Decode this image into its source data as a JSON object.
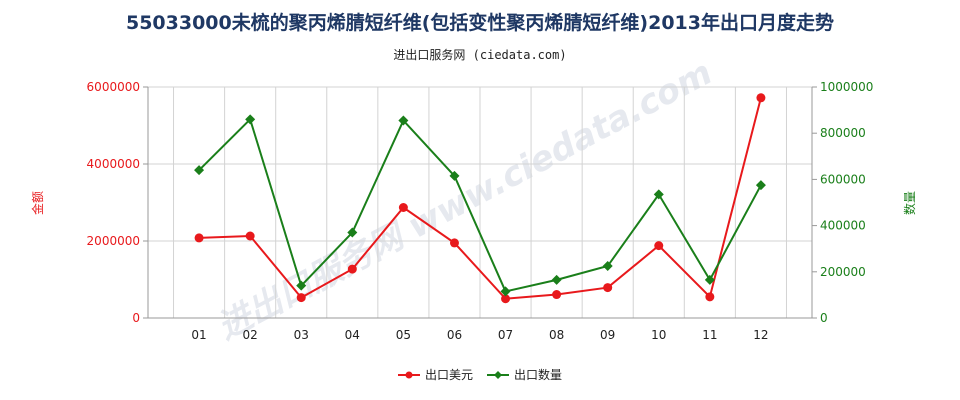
{
  "title": "55033000未梳的聚丙烯腈短纤维(包括变性聚丙烯腈短纤维)2013年出口月度走势",
  "subtitle": "进出口服务网 (ciedata.com)",
  "watermark": "进出口服务网 www.ciedata.com",
  "chart_data": {
    "type": "line",
    "categories": [
      "01",
      "02",
      "03",
      "04",
      "05",
      "06",
      "07",
      "08",
      "09",
      "10",
      "11",
      "12"
    ],
    "series": [
      {
        "name": "出口美元",
        "axis": "left",
        "color": "#e8191c",
        "marker": "circle",
        "values": [
          2080000,
          2130000,
          530000,
          1270000,
          2870000,
          1950000,
          500000,
          610000,
          790000,
          1880000,
          550000,
          5720000
        ]
      },
      {
        "name": "出口数量",
        "axis": "right",
        "color": "#1a7f1a",
        "marker": "diamond",
        "values": [
          640000,
          860000,
          140000,
          370000,
          855000,
          615000,
          115000,
          165000,
          225000,
          535000,
          165000,
          575000
        ]
      }
    ],
    "left_axis": {
      "label": "金额",
      "ylim": [
        0,
        6000000
      ],
      "ticks": [
        "0",
        "2000000",
        "4000000",
        "6000000"
      ],
      "color": "#e8191c"
    },
    "right_axis": {
      "label": "数量",
      "ylim": [
        0,
        1000000
      ],
      "ticks": [
        "0",
        "200000",
        "400000",
        "600000",
        "800000",
        "1000000"
      ],
      "color": "#1a7f1a"
    },
    "grid": true,
    "legend_position": "bottom"
  }
}
